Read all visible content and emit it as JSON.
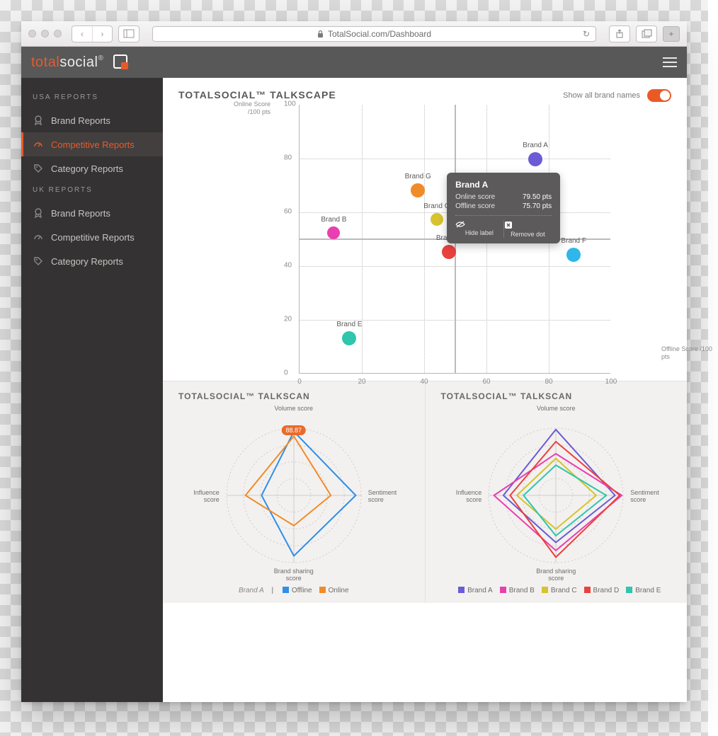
{
  "browser": {
    "url": "TotalSocial.com/Dashboard",
    "secure_icon": "lock"
  },
  "app": {
    "logo_a": "total",
    "logo_b": "social",
    "logo_r": "®"
  },
  "sidebar": {
    "sections": [
      {
        "title": "USA REPORTS",
        "items": [
          {
            "label": "Brand Reports",
            "icon": "award",
            "active": false
          },
          {
            "label": "Competitive Reports",
            "icon": "gauge",
            "active": true
          },
          {
            "label": "Category Reports",
            "icon": "tag",
            "active": false
          }
        ]
      },
      {
        "title": "UK REPORTS",
        "items": [
          {
            "label": "Brand Reports",
            "icon": "award",
            "active": false
          },
          {
            "label": "Competitive Reports",
            "icon": "gauge",
            "active": false
          },
          {
            "label": "Category Reports",
            "icon": "tag",
            "active": false
          }
        ]
      }
    ]
  },
  "talkscape": {
    "title": "TOTALSOCIAL™ TALKSCAPE",
    "toggle_label": "Show all brand names",
    "toggle_on": true,
    "y_axis_label": "Online Score /100 pts",
    "x_axis_label": "Offline Score /100 pts",
    "xlim": [
      0,
      100
    ],
    "ylim": [
      0,
      100
    ],
    "ticks": [
      0,
      20,
      40,
      60,
      80,
      100
    ],
    "quadrant_split": 50,
    "bubbles": [
      {
        "name": "Brand A",
        "x": 75.7,
        "y": 79.5,
        "r": 10,
        "color": "#6a5bd6"
      },
      {
        "name": "Brand B",
        "x": 11,
        "y": 52,
        "r": 9,
        "color": "#ea3fb0"
      },
      {
        "name": "Brand C",
        "x": 44,
        "y": 57,
        "r": 9,
        "color": "#d7c32f"
      },
      {
        "name": "Brand D",
        "x": 48,
        "y": 45,
        "r": 10,
        "color": "#e9413f"
      },
      {
        "name": "Brand E",
        "x": 16,
        "y": 13,
        "r": 10,
        "color": "#2fc6ad"
      },
      {
        "name": "Brand F",
        "x": 88,
        "y": 44,
        "r": 10,
        "color": "#2fb7e9"
      },
      {
        "name": "Brand G",
        "x": 38,
        "y": 68,
        "r": 10,
        "color": "#f08b2a"
      }
    ],
    "tooltip": {
      "title": "Brand A",
      "rows": [
        {
          "k": "Online score",
          "v": "79.50 pts"
        },
        {
          "k": "Offline score",
          "v": "75.70 pts"
        }
      ],
      "actions": [
        {
          "icon": "eye-off",
          "label": "Hide label"
        },
        {
          "icon": "x-square",
          "label": "Remove dot"
        }
      ],
      "anchor": "Brand A"
    }
  },
  "talkscan_left": {
    "title": "TOTALSOCIAL™ TALKSCAN",
    "axes": [
      "Volume score",
      "Sentiment score",
      "Brand sharing score",
      "Influence score"
    ],
    "rings": [
      25,
      50,
      75,
      100
    ],
    "series": [
      {
        "name": "Offline",
        "color": "#2f8fe9",
        "values": [
          95,
          92,
          90,
          48
        ]
      },
      {
        "name": "Online",
        "color": "#f08b2a",
        "values": [
          88,
          55,
          45,
          72
        ]
      }
    ],
    "badge": {
      "value": "88.87",
      "axis": 0
    },
    "legend_brand": "Brand A"
  },
  "talkscan_right": {
    "title": "TOTALSOCIAL™ TALKSCAN",
    "axes": [
      "Volume score",
      "Sentiment score",
      "Brand sharing score",
      "Influence score"
    ],
    "rings": [
      25,
      50,
      75,
      100
    ],
    "series": [
      {
        "name": "Brand A",
        "color": "#6a5bd6",
        "values": [
          98,
          88,
          70,
          78
        ]
      },
      {
        "name": "Brand B",
        "color": "#ea3fb0",
        "values": [
          62,
          98,
          82,
          92
        ]
      },
      {
        "name": "Brand C",
        "color": "#d7c32f",
        "values": [
          55,
          60,
          50,
          58
        ]
      },
      {
        "name": "Brand D",
        "color": "#e9413f",
        "values": [
          80,
          95,
          92,
          68
        ]
      },
      {
        "name": "Brand E",
        "color": "#2fc6ad",
        "values": [
          45,
          75,
          60,
          48
        ]
      }
    ]
  },
  "colors": {
    "accent": "#e85a2a",
    "sidebar_bg": "#343232",
    "header_bg": "#595858",
    "grid": "#dcdada",
    "quadrant": "#bdbaba"
  }
}
